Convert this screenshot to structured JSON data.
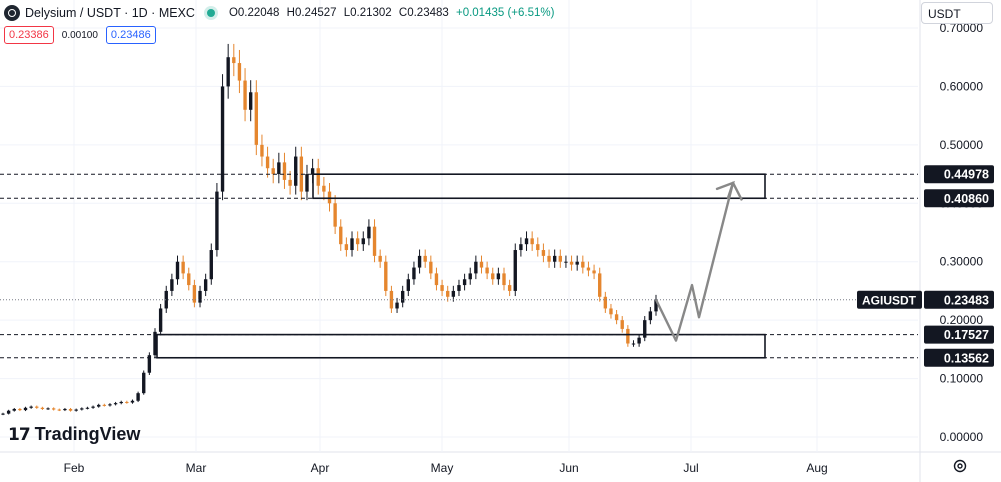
{
  "header": {
    "symbol_title": "Delysium / USDT · 1D · MEXC",
    "open": "O0.22048",
    "high": "H0.24527",
    "low": "L0.21302",
    "close": "C0.23483",
    "change": "+0.01435 (+6.51%)",
    "sell_price": "0.23386",
    "spread": "0.00100",
    "buy_price": "0.23486",
    "currency": "USDT"
  },
  "branding": {
    "logo_text": "TradingView"
  },
  "colors": {
    "up": "#089981",
    "down": "#f23645",
    "candle_up": "#131722",
    "candle_down": "#e5862e",
    "arrow": "#888888"
  },
  "icons": {
    "settings": "gear-icon",
    "logo": "tradingview-logo-icon"
  },
  "chart_data": {
    "type": "candlestick",
    "x_labels": [
      "Feb",
      "Mar",
      "Apr",
      "May",
      "Jun",
      "Jul",
      "Aug"
    ],
    "y_ticks": [
      "0.00000",
      "0.10000",
      "0.20000",
      "0.30000",
      "0.40000",
      "0.50000",
      "0.60000",
      "0.70000"
    ],
    "ylim": [
      0.0,
      0.7
    ],
    "last_price_label": "AGIUSDT",
    "last_price": "0.23483",
    "level_labels": [
      "0.44978",
      "0.40860",
      "0.17527",
      "0.13562"
    ],
    "levels": [
      0.44978,
      0.4086,
      0.17527,
      0.13562
    ],
    "zones": [
      {
        "from": 0.4086,
        "to": 0.44978
      },
      {
        "from": 0.13562,
        "to": 0.17527
      }
    ],
    "path_forecast": [
      0.235,
      0.165,
      0.26,
      0.205,
      0.435,
      0.405
    ],
    "close_series": [
      0.04,
      0.045,
      0.048,
      0.046,
      0.05,
      0.052,
      0.05,
      0.048,
      0.049,
      0.047,
      0.046,
      0.048,
      0.045,
      0.047,
      0.049,
      0.05,
      0.052,
      0.055,
      0.054,
      0.056,
      0.058,
      0.06,
      0.059,
      0.062,
      0.075,
      0.11,
      0.14,
      0.18,
      0.22,
      0.25,
      0.27,
      0.3,
      0.28,
      0.26,
      0.23,
      0.25,
      0.27,
      0.32,
      0.42,
      0.6,
      0.65,
      0.64,
      0.61,
      0.56,
      0.59,
      0.5,
      0.48,
      0.46,
      0.45,
      0.47,
      0.44,
      0.43,
      0.48,
      0.42,
      0.45,
      0.46,
      0.43,
      0.42,
      0.4,
      0.36,
      0.33,
      0.32,
      0.34,
      0.33,
      0.34,
      0.36,
      0.31,
      0.3,
      0.25,
      0.22,
      0.23,
      0.25,
      0.27,
      0.29,
      0.31,
      0.3,
      0.28,
      0.26,
      0.25,
      0.24,
      0.25,
      0.26,
      0.27,
      0.28,
      0.3,
      0.29,
      0.28,
      0.27,
      0.28,
      0.26,
      0.25,
      0.32,
      0.33,
      0.34,
      0.33,
      0.32,
      0.31,
      0.3,
      0.31,
      0.3,
      0.3,
      0.295,
      0.3,
      0.29,
      0.285,
      0.28,
      0.24,
      0.22,
      0.21,
      0.2,
      0.185,
      0.16,
      0.16,
      0.17,
      0.2,
      0.215,
      0.235
    ]
  }
}
